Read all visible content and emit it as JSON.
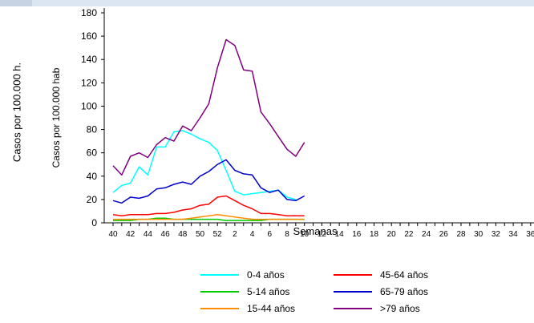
{
  "outer_ylabel": "Casos por 100.000 h.",
  "colors": {
    "axis": "#000000"
  },
  "chart_data": {
    "type": "line",
    "title": "",
    "xlabel": "Semanas",
    "ylabel": "Casos por 100.000 hab",
    "ylim": [
      0,
      180
    ],
    "yticks": [
      0,
      20,
      40,
      60,
      80,
      100,
      120,
      140,
      160,
      180
    ],
    "grid": false,
    "legend_position": "bottom",
    "x": [
      "40",
      "41",
      "42",
      "43",
      "44",
      "45",
      "46",
      "47",
      "48",
      "49",
      "50",
      "51",
      "52",
      "1",
      "2",
      "3",
      "4",
      "5",
      "6",
      "7",
      "8",
      "9",
      "10",
      "11",
      "12",
      "13",
      "14",
      "15",
      "16",
      "17",
      "18",
      "19",
      "20",
      "21",
      "22",
      "23",
      "24",
      "25",
      "26",
      "27",
      "28",
      "29",
      "30",
      "31",
      "32",
      "33",
      "34",
      "35",
      "36"
    ],
    "xtick_labels": [
      "40",
      "42",
      "44",
      "46",
      "48",
      "50",
      "52",
      "2",
      "4",
      "6",
      "8",
      "10",
      "12",
      "14",
      "16",
      "18",
      "20",
      "22",
      "24",
      "26",
      "28",
      "30",
      "32",
      "34",
      "36"
    ],
    "series": [
      {
        "name": "0-4 años",
        "color": "#00ffff",
        "values": [
          26,
          32,
          34,
          48,
          41,
          65,
          65,
          78,
          79,
          76,
          72,
          69,
          62,
          45,
          27,
          24,
          25,
          26,
          27,
          28,
          22,
          20,
          null,
          null,
          null,
          null,
          null,
          null,
          null,
          null,
          null,
          null,
          null,
          null,
          null,
          null,
          null,
          null,
          null,
          null,
          null,
          null,
          null,
          null,
          null,
          null,
          null,
          null,
          null
        ]
      },
      {
        "name": "5-14 años",
        "color": "#00cc00",
        "values": [
          2,
          2,
          2,
          3,
          3,
          4,
          4,
          3,
          3,
          3,
          3,
          3,
          3,
          2,
          2,
          2,
          2,
          2,
          3,
          3,
          3,
          3,
          3,
          null,
          null,
          null,
          null,
          null,
          null,
          null,
          null,
          null,
          null,
          null,
          null,
          null,
          null,
          null,
          null,
          null,
          null,
          null,
          null,
          null,
          null,
          null,
          null,
          null,
          null
        ]
      },
      {
        "name": "15-44 años",
        "color": "#ff8c00",
        "values": [
          3,
          3,
          3,
          3,
          3,
          3,
          3,
          3,
          3,
          4,
          5,
          6,
          7,
          6,
          5,
          4,
          3,
          3,
          3,
          3,
          3,
          3,
          3,
          null,
          null,
          null,
          null,
          null,
          null,
          null,
          null,
          null,
          null,
          null,
          null,
          null,
          null,
          null,
          null,
          null,
          null,
          null,
          null,
          null,
          null,
          null,
          null,
          null,
          null
        ]
      },
      {
        "name": "45-64 años",
        "color": "#ff0000",
        "values": [
          7,
          6,
          7,
          7,
          7,
          8,
          8,
          9,
          11,
          12,
          15,
          16,
          22,
          23,
          19,
          15,
          12,
          8,
          8,
          7,
          6,
          6,
          6,
          null,
          null,
          null,
          null,
          null,
          null,
          null,
          null,
          null,
          null,
          null,
          null,
          null,
          null,
          null,
          null,
          null,
          null,
          null,
          null,
          null,
          null,
          null,
          null,
          null,
          null
        ]
      },
      {
        "name": "65-79 años",
        "color": "#0000cc",
        "values": [
          19,
          17,
          22,
          21,
          23,
          29,
          30,
          33,
          35,
          33,
          40,
          44,
          50,
          54,
          45,
          42,
          41,
          30,
          26,
          28,
          20,
          19,
          23,
          null,
          null,
          null,
          null,
          null,
          null,
          null,
          null,
          null,
          null,
          null,
          null,
          null,
          null,
          null,
          null,
          null,
          null,
          null,
          null,
          null,
          null,
          null,
          null,
          null,
          null
        ]
      },
      {
        "name": ">79 años",
        "color": "#800080",
        "values": [
          49,
          41,
          57,
          60,
          56,
          67,
          73,
          70,
          83,
          79,
          90,
          102,
          133,
          157,
          152,
          131,
          130,
          95,
          85,
          74,
          63,
          57,
          69,
          null,
          null,
          null,
          null,
          null,
          null,
          null,
          null,
          null,
          null,
          null,
          null,
          null,
          null,
          null,
          null,
          null,
          null,
          null,
          null,
          null,
          null,
          null,
          null,
          null,
          null
        ]
      }
    ]
  }
}
